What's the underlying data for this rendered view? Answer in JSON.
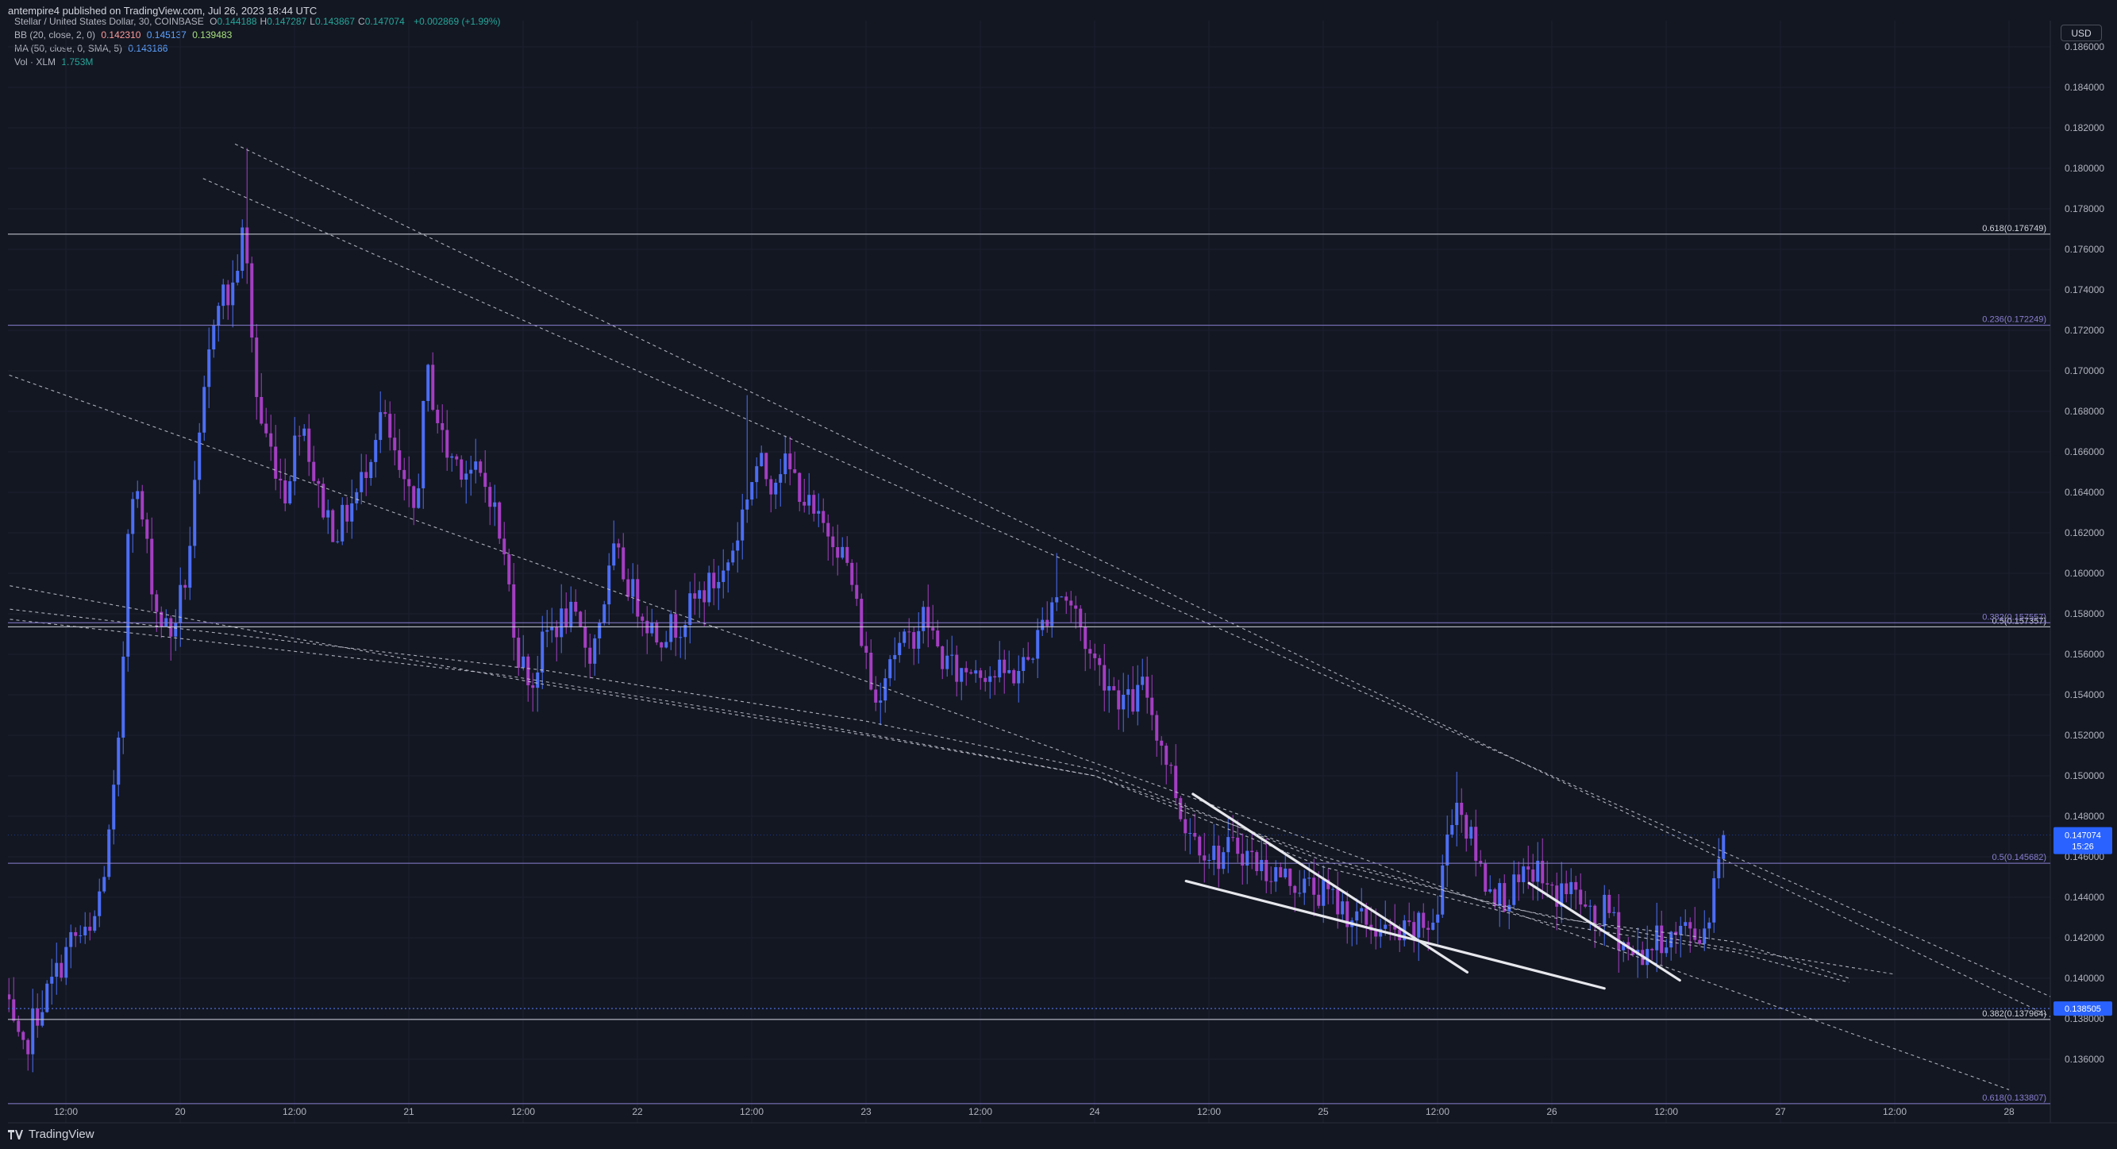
{
  "header": {
    "publish_text": "antempire4 published on TradingView.com, Jul 26, 2023 18:44 UTC"
  },
  "legend": {
    "symbol": "Stellar / United States Dollar, 30, COINBASE",
    "ohlc": [
      {
        "k": "O",
        "v": "0.144188"
      },
      {
        "k": "H",
        "v": "0.147287"
      },
      {
        "k": "L",
        "v": "0.143867"
      },
      {
        "k": "C",
        "v": "0.147074"
      }
    ],
    "change": "+0.002869 (+1.99%)",
    "bb_label": "BB (20, close, 2, 0)",
    "bb_values": [
      "0.142310",
      "0.145137",
      "0.139483"
    ],
    "ma_label": "MA (50, close, 0, SMA, 5)",
    "ma_value": "0.143186",
    "vol_label": "Vol · XLM",
    "vol_value": "1.753M"
  },
  "currency_button": "USD",
  "footer": {
    "brand": "TradingView"
  },
  "colors": {
    "background": "#131722",
    "up": "#4c6ef5",
    "down": "#a43ec2",
    "grid": "#1c2030",
    "fib_white": "#d1d4dc",
    "fib_purple": "#8a7fd0",
    "current_price_bg": "#2962ff",
    "dotted_level": "#4d6bd6"
  },
  "chart_data": {
    "type": "candlestick",
    "symbol": "XLMUSD",
    "timeframe": "30",
    "y_axis": {
      "ylim": [
        0.1347,
        0.1863
      ],
      "ticks": [
        "0.186000",
        "0.184000",
        "0.182000",
        "0.180000",
        "0.178000",
        "0.176000",
        "0.174000",
        "0.172000",
        "0.170000",
        "0.168000",
        "0.166000",
        "0.164000",
        "0.162000",
        "0.160000",
        "0.158000",
        "0.156000",
        "0.154000",
        "0.152000",
        "0.150000",
        "0.148000",
        "0.146000",
        "0.144000",
        "0.142000",
        "0.140000",
        "0.138000",
        "0.136000"
      ]
    },
    "x_axis": {
      "ticks": [
        {
          "day": 19.5,
          "label": "12:00"
        },
        {
          "day": 20.0,
          "label": "20"
        },
        {
          "day": 20.5,
          "label": "12:00"
        },
        {
          "day": 21.0,
          "label": "21"
        },
        {
          "day": 21.5,
          "label": "12:00"
        },
        {
          "day": 22.0,
          "label": "22"
        },
        {
          "day": 22.5,
          "label": "12:00"
        },
        {
          "day": 23.0,
          "label": "23"
        },
        {
          "day": 23.5,
          "label": "12:00"
        },
        {
          "day": 24.0,
          "label": "24"
        },
        {
          "day": 24.5,
          "label": "12:00"
        },
        {
          "day": 25.0,
          "label": "25"
        },
        {
          "day": 25.5,
          "label": "12:00"
        },
        {
          "day": 26.0,
          "label": "26"
        },
        {
          "day": 26.5,
          "label": "12:00"
        },
        {
          "day": 27.0,
          "label": "27"
        },
        {
          "day": 27.5,
          "label": "12:00"
        },
        {
          "day": 28.0,
          "label": "28"
        }
      ]
    },
    "price_anchors": [
      [
        19.24,
        0.1395
      ],
      [
        19.3,
        0.137
      ],
      [
        19.33,
        0.136
      ],
      [
        19.38,
        0.138
      ],
      [
        19.45,
        0.1395
      ],
      [
        19.55,
        0.142
      ],
      [
        19.63,
        0.142
      ],
      [
        19.7,
        0.146
      ],
      [
        19.75,
        0.151
      ],
      [
        19.78,
        0.158
      ],
      [
        19.8,
        0.165
      ],
      [
        19.85,
        0.163
      ],
      [
        19.92,
        0.158
      ],
      [
        19.98,
        0.157
      ],
      [
        20.05,
        0.16
      ],
      [
        20.12,
        0.168
      ],
      [
        20.18,
        0.174
      ],
      [
        20.24,
        0.1735
      ],
      [
        20.3,
        0.177
      ],
      [
        20.36,
        0.168
      ],
      [
        20.42,
        0.166
      ],
      [
        20.48,
        0.164
      ],
      [
        20.55,
        0.168
      ],
      [
        20.62,
        0.164
      ],
      [
        20.7,
        0.162
      ],
      [
        20.8,
        0.164
      ],
      [
        20.9,
        0.168
      ],
      [
        21.0,
        0.164
      ],
      [
        21.05,
        0.163
      ],
      [
        21.1,
        0.17
      ],
      [
        21.18,
        0.166
      ],
      [
        21.3,
        0.165
      ],
      [
        21.38,
        0.164
      ],
      [
        21.45,
        0.16
      ],
      [
        21.5,
        0.156
      ],
      [
        21.56,
        0.1545
      ],
      [
        21.62,
        0.157
      ],
      [
        21.72,
        0.158
      ],
      [
        21.82,
        0.156
      ],
      [
        21.92,
        0.161
      ],
      [
        22.0,
        0.159
      ],
      [
        22.1,
        0.157
      ],
      [
        22.2,
        0.1575
      ],
      [
        22.3,
        0.159
      ],
      [
        22.4,
        0.16
      ],
      [
        22.46,
        0.162
      ],
      [
        22.5,
        0.164
      ],
      [
        22.55,
        0.1655
      ],
      [
        22.6,
        0.1645
      ],
      [
        22.65,
        0.1655
      ],
      [
        22.72,
        0.1645
      ],
      [
        22.8,
        0.1625
      ],
      [
        22.88,
        0.162
      ],
      [
        22.95,
        0.16
      ],
      [
        23.0,
        0.157
      ],
      [
        23.06,
        0.1535
      ],
      [
        23.12,
        0.156
      ],
      [
        23.2,
        0.1565
      ],
      [
        23.28,
        0.158
      ],
      [
        23.34,
        0.156
      ],
      [
        23.42,
        0.155
      ],
      [
        23.5,
        0.1555
      ],
      [
        23.58,
        0.155
      ],
      [
        23.66,
        0.155
      ],
      [
        23.72,
        0.1555
      ],
      [
        23.78,
        0.157
      ],
      [
        23.84,
        0.159
      ],
      [
        23.88,
        0.159
      ],
      [
        23.94,
        0.158
      ],
      [
        24.0,
        0.156
      ],
      [
        24.06,
        0.155
      ],
      [
        24.12,
        0.154
      ],
      [
        24.18,
        0.1535
      ],
      [
        24.24,
        0.1545
      ],
      [
        24.3,
        0.152
      ],
      [
        24.36,
        0.15
      ],
      [
        24.4,
        0.148
      ],
      [
        24.46,
        0.147
      ],
      [
        24.55,
        0.146
      ],
      [
        24.65,
        0.1465
      ],
      [
        24.75,
        0.1455
      ],
      [
        24.85,
        0.145
      ],
      [
        24.95,
        0.1445
      ],
      [
        25.05,
        0.144
      ],
      [
        25.15,
        0.143
      ],
      [
        25.25,
        0.1425
      ],
      [
        25.35,
        0.142
      ],
      [
        25.45,
        0.1425
      ],
      [
        25.52,
        0.143
      ],
      [
        25.56,
        0.147
      ],
      [
        25.6,
        0.149
      ],
      [
        25.66,
        0.147
      ],
      [
        25.72,
        0.145
      ],
      [
        25.8,
        0.144
      ],
      [
        25.88,
        0.1445
      ],
      [
        25.95,
        0.1455
      ],
      [
        26.02,
        0.144
      ],
      [
        26.08,
        0.1445
      ],
      [
        26.14,
        0.144
      ],
      [
        26.2,
        0.1425
      ],
      [
        26.26,
        0.1435
      ],
      [
        26.32,
        0.142
      ],
      [
        26.38,
        0.141
      ],
      [
        26.44,
        0.1415
      ],
      [
        26.5,
        0.142
      ],
      [
        26.56,
        0.142
      ],
      [
        26.62,
        0.1425
      ],
      [
        26.68,
        0.142
      ],
      [
        26.72,
        0.144
      ],
      [
        26.76,
        0.147
      ]
    ],
    "high_peaks": [
      [
        20.3,
        0.181
      ],
      [
        22.47,
        0.1688
      ],
      [
        23.84,
        0.161
      ],
      [
        25.58,
        0.1502
      ],
      [
        26.76,
        0.1473
      ]
    ],
    "low_troughs": [
      [
        19.33,
        0.1355
      ],
      [
        21.56,
        0.1538
      ],
      [
        23.06,
        0.1525
      ]
    ],
    "series_type_note": "",
    "fib_levels": [
      {
        "label": "0.618(0.176749)",
        "value": 0.176749,
        "color": "white"
      },
      {
        "label": "0.236(0.172249)",
        "value": 0.172249,
        "color": "purple"
      },
      {
        "label": "0.5(0.157357)",
        "value": 0.157357,
        "color": "white"
      },
      {
        "label": "0.382(0.157557)",
        "value": 0.157557,
        "color": "purple"
      },
      {
        "label": "0.5(0.145682)",
        "value": 0.145682,
        "color": "purple"
      },
      {
        "label": "0.382(0.137964)",
        "value": 0.137964,
        "color": "white"
      },
      {
        "label": "0.618(0.133807)",
        "value": 0.133807,
        "color": "purple"
      }
    ],
    "dotted_level": {
      "value": 0.138505,
      "label": "0.138505"
    },
    "current_price": {
      "value": 0.147074,
      "label": "0.147074",
      "countdown": "15:26"
    },
    "trendlines_dashed": [
      [
        [
          20.24,
          0.1812
        ],
        [
          28.2,
          0.138
        ]
      ],
      [
        [
          20.1,
          0.1795
        ],
        [
          28.2,
          0.139
        ]
      ],
      [
        [
          19.2,
          0.17
        ],
        [
          28.0,
          0.1345
        ]
      ],
      [
        [
          19.2,
          0.1595
        ],
        [
          21.6,
          0.1545
        ],
        [
          23.0,
          0.152
        ],
        [
          24.0,
          0.15
        ],
        [
          25.0,
          0.1455
        ],
        [
          26.0,
          0.1427
        ],
        [
          26.8,
          0.1413
        ],
        [
          27.3,
          0.1398
        ]
      ],
      [
        [
          19.2,
          0.1583
        ],
        [
          21.6,
          0.1552
        ],
        [
          23.0,
          0.1527
        ],
        [
          24.0,
          0.1503
        ],
        [
          25.0,
          0.1458
        ],
        [
          26.0,
          0.143
        ],
        [
          26.8,
          0.1418
        ],
        [
          27.3,
          0.14
        ]
      ],
      [
        [
          19.2,
          0.1578
        ],
        [
          21.4,
          0.155
        ],
        [
          22.8,
          0.1525
        ],
        [
          24.0,
          0.15
        ],
        [
          25.0,
          0.146
        ],
        [
          25.8,
          0.1435
        ],
        [
          26.6,
          0.1418
        ],
        [
          27.5,
          0.1402
        ]
      ]
    ],
    "wedge_lines": [
      [
        [
          24.43,
          0.1491
        ],
        [
          25.63,
          0.1403
        ]
      ],
      [
        [
          24.4,
          0.1448
        ],
        [
          26.23,
          0.1395
        ]
      ],
      [
        [
          25.9,
          0.1447
        ],
        [
          26.56,
          0.1399
        ]
      ]
    ]
  }
}
